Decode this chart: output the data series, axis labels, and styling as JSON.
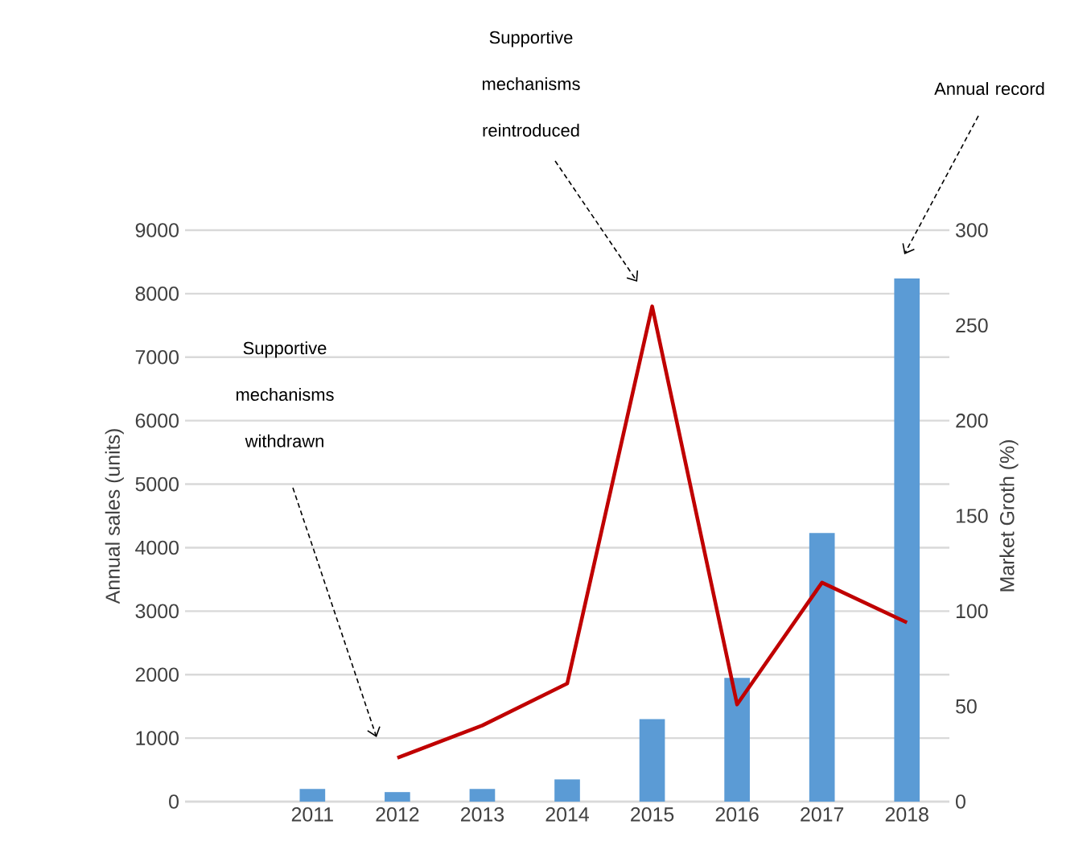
{
  "chart_data": {
    "type": "bar",
    "categories": [
      null,
      "2011",
      "2012",
      "2013",
      "2014",
      "2015",
      "2016",
      "2017",
      "2018"
    ],
    "series": [
      {
        "color": "#5b9bd5",
        "values": [
          null,
          200,
          150,
          200,
          350,
          1300,
          1950,
          4230,
          8240
        ]
      },
      {
        "type": "line",
        "axis": "y2",
        "color": "#c00000",
        "values": [
          null,
          null,
          23,
          40,
          62,
          260,
          51,
          115,
          94
        ]
      }
    ],
    "ylabel": "Annual sales (units)",
    "y2label": "Market Groth (%)",
    "ylim": [
      0,
      9000
    ],
    "yticks": [
      0,
      1000,
      2000,
      3000,
      4000,
      5000,
      6000,
      7000,
      8000,
      9000
    ],
    "y2lim": [
      0,
      300
    ],
    "y2ticks": [
      0,
      50,
      100,
      150,
      200,
      250,
      300
    ],
    "grid": "y",
    "annotations": [
      "Supportive mechanisms withdrawn",
      "Supportive mechanisms reintroduced",
      "Annual record"
    ]
  }
}
